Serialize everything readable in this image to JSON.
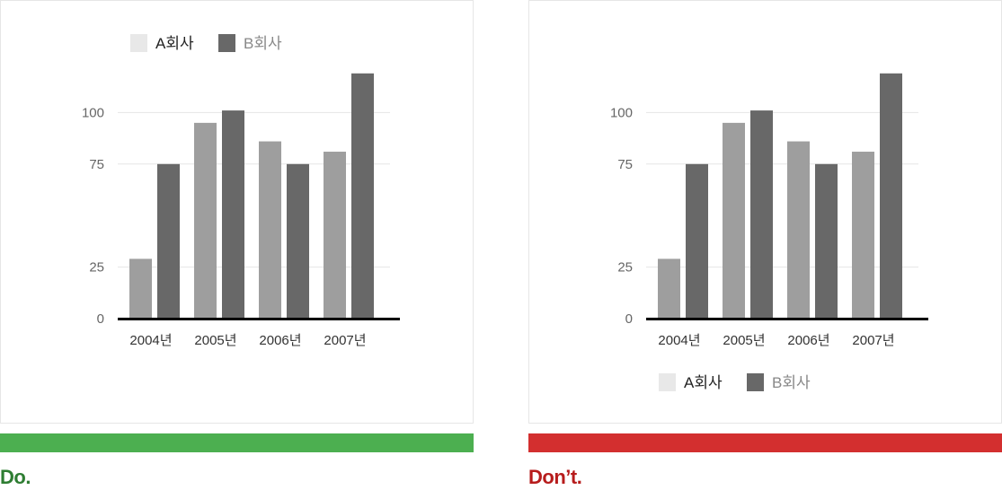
{
  "colors": {
    "series_a": "#9e9e9e",
    "series_b": "#686868",
    "legend_a": "#e8e8e8",
    "legend_b": "#686868",
    "do": "#4caf50",
    "do_text": "#2e7d32",
    "dont": "#d32f2f",
    "dont_text": "#b71c1c",
    "grid": "#e6e6e6",
    "axis": "#000000",
    "tick_text": "#666666",
    "category_text": "#333333"
  },
  "panels": [
    {
      "verdict": "Do.",
      "legend_position": "top"
    },
    {
      "verdict": "Don’t.",
      "legend_position": "bottom"
    }
  ],
  "chart_data": [
    {
      "type": "bar",
      "categories": [
        "2004년",
        "2005년",
        "2006년",
        "2007년"
      ],
      "series": [
        {
          "name": "A회사",
          "values": [
            29,
            95,
            86,
            81
          ]
        },
        {
          "name": "B회사",
          "values": [
            75,
            101,
            75,
            119
          ]
        }
      ],
      "yticks": [
        0,
        25,
        75,
        100
      ],
      "ylim": [
        0,
        125
      ],
      "grid": true,
      "legend": "top"
    },
    {
      "type": "bar",
      "categories": [
        "2004년",
        "2005년",
        "2006년",
        "2007년"
      ],
      "series": [
        {
          "name": "A회사",
          "values": [
            29,
            95,
            86,
            81
          ]
        },
        {
          "name": "B회사",
          "values": [
            75,
            101,
            75,
            119
          ]
        }
      ],
      "yticks": [
        0,
        25,
        75,
        100
      ],
      "ylim": [
        0,
        125
      ],
      "grid": true,
      "legend": "bottom"
    }
  ]
}
